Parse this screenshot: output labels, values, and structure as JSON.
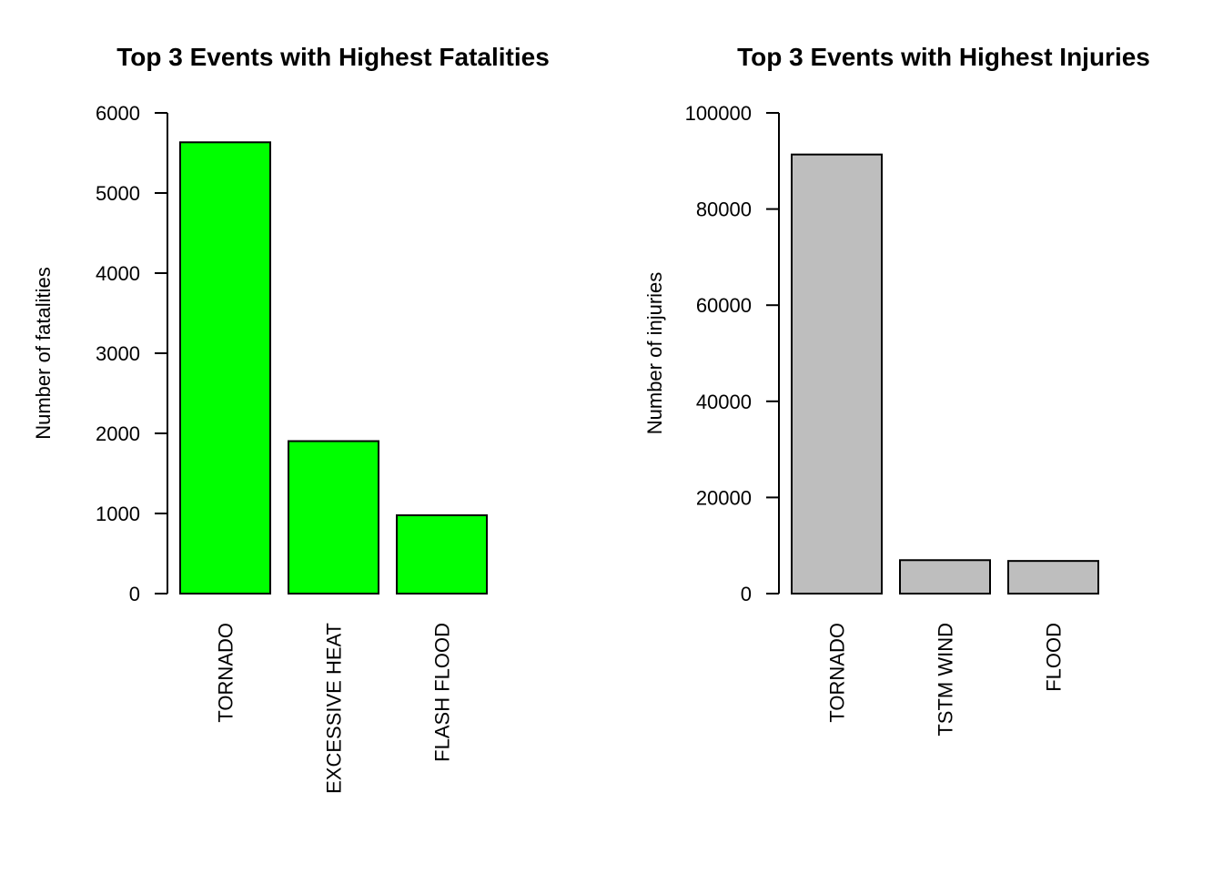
{
  "chart_data": [
    {
      "type": "bar",
      "title": "Top 3 Events with Highest Fatalities",
      "xlabel": "",
      "ylabel": "Number of fatalities",
      "categories": [
        "TORNADO",
        "EXCESSIVE HEAT",
        "FLASH FLOOD"
      ],
      "values": [
        5633,
        1903,
        978
      ],
      "ylim": [
        0,
        6000
      ],
      "yticks": [
        0,
        1000,
        2000,
        3000,
        4000,
        5000,
        6000
      ],
      "bar_color": "#00ff00",
      "grid": false,
      "legend": "none"
    },
    {
      "type": "bar",
      "title": "Top 3 Events with Highest Injuries",
      "xlabel": "",
      "ylabel": "Number of injuries",
      "categories": [
        "TORNADO",
        "TSTM WIND",
        "FLOOD"
      ],
      "values": [
        91346,
        6957,
        6789
      ],
      "ylim": [
        0,
        100000
      ],
      "yticks": [
        0,
        20000,
        40000,
        60000,
        80000,
        100000
      ],
      "bar_color": "#bebebe",
      "grid": false,
      "legend": "none"
    }
  ]
}
